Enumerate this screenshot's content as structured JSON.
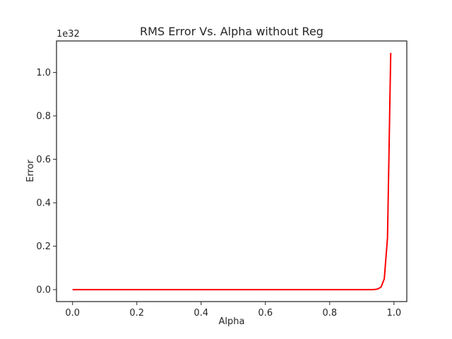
{
  "chart_data": {
    "type": "line",
    "title": "RMS Error Vs. Alpha without Reg",
    "xlabel": "Alpha",
    "ylabel": "Error",
    "y_offset_text": "1e32",
    "y_scale_factor": 1e+32,
    "xlim": [
      -0.05,
      1.04
    ],
    "ylim": [
      -0.055,
      1.145
    ],
    "x_ticks": [
      0.0,
      0.2,
      0.4,
      0.6,
      0.8,
      1.0
    ],
    "x_tick_labels": [
      "0.0",
      "0.2",
      "0.4",
      "0.6",
      "0.8",
      "1.0"
    ],
    "y_ticks": [
      0.0,
      0.2,
      0.4,
      0.6,
      0.8,
      1.0
    ],
    "y_tick_labels": [
      "0.0",
      "0.2",
      "0.4",
      "0.6",
      "0.8",
      "1.0"
    ],
    "grid": false,
    "series": [
      {
        "color": "#ff0000",
        "x": [
          0.0,
          0.1,
          0.2,
          0.3,
          0.4,
          0.5,
          0.6,
          0.7,
          0.8,
          0.9,
          0.93,
          0.94,
          0.95,
          0.96,
          0.97,
          0.98,
          0.99
        ],
        "y": [
          0.0,
          0.0,
          0.0,
          0.0,
          0.0,
          0.0,
          0.0,
          0.0,
          0.0,
          0.0,
          0.0,
          0.0005,
          0.003,
          0.012,
          0.05,
          0.24,
          1.09
        ]
      }
    ]
  }
}
